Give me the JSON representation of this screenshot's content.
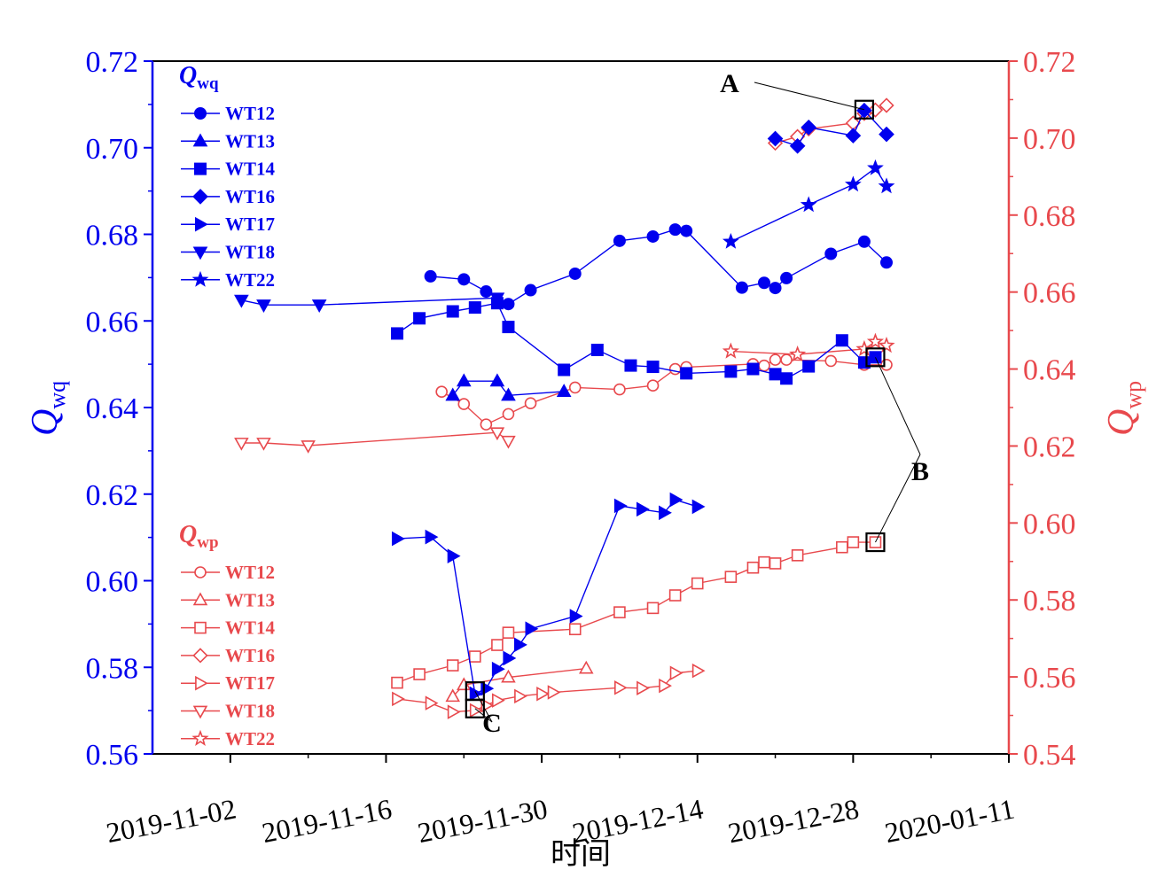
{
  "colors": {
    "left_axis": "#0000ee",
    "right_axis": "#e8494d",
    "frame": "#000000"
  },
  "chart_data": {
    "type": "line",
    "x_type": "date",
    "xlabel": "时间",
    "xlim": [
      "2019-10-26",
      "2020-01-11"
    ],
    "xticks": [
      "2019-11-02",
      "2019-11-16",
      "2019-11-30",
      "2019-12-14",
      "2019-12-28",
      "2020-01-11"
    ],
    "ylabel_left": {
      "main": "Q",
      "sub": "wq"
    },
    "ylabel_right": {
      "main": "Q",
      "sub": "wp"
    },
    "ylim_left": [
      0.56,
      0.72
    ],
    "ylim_right": [
      0.54,
      0.72
    ],
    "yticks_left": [
      "0.56",
      "0.58",
      "0.60",
      "0.62",
      "0.64",
      "0.66",
      "0.68",
      "0.70",
      "0.72"
    ],
    "yticks_right": [
      "0.54",
      "0.56",
      "0.58",
      "0.60",
      "0.62",
      "0.64",
      "0.66",
      "0.68",
      "0.70",
      "0.72"
    ],
    "legend_left": {
      "title_main": "Q",
      "title_sub": "wq",
      "placement": "top-left"
    },
    "legend_right": {
      "title_main": "Q",
      "title_sub": "wp",
      "placement": "bottom-left"
    },
    "series_wq": [
      {
        "name": "WT12",
        "marker": "circle",
        "points": [
          [
            "2019-11-20",
            0.6703
          ],
          [
            "2019-11-23",
            0.6696
          ],
          [
            "2019-11-25",
            0.6668
          ],
          [
            "2019-11-27",
            0.6639
          ],
          [
            "2019-11-29",
            0.6671
          ],
          [
            "2019-12-03",
            0.6709
          ],
          [
            "2019-12-07",
            0.6785
          ],
          [
            "2019-12-10",
            0.6795
          ],
          [
            "2019-12-12",
            0.6811
          ],
          [
            "2019-12-13",
            0.6808
          ],
          [
            "2019-12-18",
            0.6677
          ],
          [
            "2019-12-20",
            0.6688
          ],
          [
            "2019-12-21",
            0.6676
          ],
          [
            "2019-12-22",
            0.6699
          ],
          [
            "2019-12-26",
            0.6755
          ],
          [
            "2019-12-29",
            0.6783
          ],
          [
            "2019-12-31",
            0.6735
          ]
        ]
      },
      {
        "name": "WT13",
        "marker": "triangle",
        "points": [
          [
            "2019-11-22",
            0.6428
          ],
          [
            "2019-11-23",
            0.6461
          ],
          [
            "2019-11-26",
            0.6461
          ],
          [
            "2019-11-27",
            0.6428
          ],
          [
            "2019-12-02",
            0.6437
          ]
        ]
      },
      {
        "name": "WT14",
        "marker": "square",
        "points": [
          [
            "2019-11-17",
            0.6571
          ],
          [
            "2019-11-19",
            0.6606
          ],
          [
            "2019-11-22",
            0.6622
          ],
          [
            "2019-11-24",
            0.6631
          ],
          [
            "2019-11-26",
            0.6641
          ],
          [
            "2019-11-27",
            0.6586
          ],
          [
            "2019-12-02",
            0.6487
          ],
          [
            "2019-12-05",
            0.6533
          ],
          [
            "2019-12-08",
            0.6497
          ],
          [
            "2019-12-10",
            0.6494
          ],
          [
            "2019-12-13",
            0.6479
          ],
          [
            "2019-12-17",
            0.6483
          ],
          [
            "2019-12-19",
            0.6489
          ],
          [
            "2019-12-21",
            0.6477
          ],
          [
            "2019-12-22",
            0.6467
          ],
          [
            "2019-12-24",
            0.6495
          ],
          [
            "2019-12-27",
            0.6555
          ],
          [
            "2019-12-29",
            0.6504
          ],
          [
            "2019-12-30",
            0.6516
          ]
        ]
      },
      {
        "name": "WT16",
        "marker": "diamond",
        "points": [
          [
            "2019-12-21",
            0.7021
          ],
          [
            "2019-12-23",
            0.7004
          ],
          [
            "2019-12-24",
            0.7047
          ],
          [
            "2019-12-28",
            0.7028
          ],
          [
            "2019-12-29",
            0.7086
          ],
          [
            "2019-12-31",
            0.7031
          ]
        ]
      },
      {
        "name": "WT17",
        "marker": "triangle-right",
        "points": [
          [
            "2019-11-17",
            0.6097
          ],
          [
            "2019-11-20",
            0.6101
          ],
          [
            "2019-11-22",
            0.6057
          ],
          [
            "2019-11-24",
            0.5739
          ],
          [
            "2019-11-25",
            0.5751
          ],
          [
            "2019-11-26",
            0.5796
          ],
          [
            "2019-11-27",
            0.5821
          ],
          [
            "2019-11-28",
            0.5852
          ],
          [
            "2019-11-29",
            0.5889
          ],
          [
            "2019-12-03",
            0.5918
          ],
          [
            "2019-12-07",
            0.6173
          ],
          [
            "2019-12-09",
            0.6165
          ],
          [
            "2019-12-11",
            0.6157
          ],
          [
            "2019-12-12",
            0.6187
          ],
          [
            "2019-12-14",
            0.6171
          ]
        ]
      },
      {
        "name": "WT18",
        "marker": "triangle-down",
        "points": [
          [
            "2019-11-03",
            0.6648
          ],
          [
            "2019-11-05",
            0.6637
          ],
          [
            "2019-11-10",
            0.6637
          ],
          [
            "2019-11-26",
            0.6653
          ]
        ]
      },
      {
        "name": "WT22",
        "marker": "star",
        "points": [
          [
            "2019-12-17",
            0.6783
          ],
          [
            "2019-12-24",
            0.6868
          ],
          [
            "2019-12-28",
            0.6915
          ],
          [
            "2019-12-30",
            0.6953
          ],
          [
            "2019-12-31",
            0.6911
          ]
        ]
      }
    ],
    "series_wp": [
      {
        "name": "WT12",
        "marker": "circle",
        "points": [
          [
            "2019-11-21",
            0.6341
          ],
          [
            "2019-11-23",
            0.6309
          ],
          [
            "2019-11-25",
            0.6256
          ],
          [
            "2019-11-27",
            0.6283
          ],
          [
            "2019-11-29",
            0.6311
          ],
          [
            "2019-12-03",
            0.6352
          ],
          [
            "2019-12-07",
            0.6347
          ],
          [
            "2019-12-10",
            0.6357
          ],
          [
            "2019-12-12",
            0.64
          ],
          [
            "2019-12-13",
            0.6405
          ],
          [
            "2019-12-19",
            0.6413
          ],
          [
            "2019-12-20",
            0.6409
          ],
          [
            "2019-12-21",
            0.6424
          ],
          [
            "2019-12-22",
            0.6424
          ],
          [
            "2019-12-26",
            0.6421
          ],
          [
            "2019-12-29",
            0.6411
          ],
          [
            "2019-12-31",
            0.6411
          ]
        ]
      },
      {
        "name": "WT13",
        "marker": "triangle",
        "points": [
          [
            "2019-11-22",
            0.5549
          ],
          [
            "2019-11-23",
            0.5579
          ],
          [
            "2019-11-27",
            0.5599
          ],
          [
            "2019-12-04",
            0.5622
          ]
        ]
      },
      {
        "name": "WT14",
        "marker": "square",
        "points": [
          [
            "2019-11-17",
            0.5585
          ],
          [
            "2019-11-19",
            0.5607
          ],
          [
            "2019-11-22",
            0.563
          ],
          [
            "2019-11-24",
            0.5653
          ],
          [
            "2019-11-26",
            0.5683
          ],
          [
            "2019-11-27",
            0.5715
          ],
          [
            "2019-12-03",
            0.5724
          ],
          [
            "2019-12-07",
            0.5768
          ],
          [
            "2019-12-10",
            0.5779
          ],
          [
            "2019-12-12",
            0.5812
          ],
          [
            "2019-12-14",
            0.5843
          ],
          [
            "2019-12-17",
            0.586
          ],
          [
            "2019-12-19",
            0.5884
          ],
          [
            "2019-12-20",
            0.5898
          ],
          [
            "2019-12-21",
            0.5895
          ],
          [
            "2019-12-23",
            0.5916
          ],
          [
            "2019-12-27",
            0.5937
          ],
          [
            "2019-12-28",
            0.595
          ],
          [
            "2019-12-30",
            0.595
          ]
        ]
      },
      {
        "name": "WT16",
        "marker": "diamond",
        "points": [
          [
            "2019-12-21",
            0.6987
          ],
          [
            "2019-12-23",
            0.7004
          ],
          [
            "2019-12-24",
            0.7024
          ],
          [
            "2019-12-28",
            0.7039
          ],
          [
            "2019-12-29",
            0.7064
          ],
          [
            "2019-12-30",
            0.7073
          ],
          [
            "2019-12-31",
            0.7085
          ]
        ]
      },
      {
        "name": "WT17",
        "marker": "triangle-right",
        "points": [
          [
            "2019-11-17",
            0.5543
          ],
          [
            "2019-11-20",
            0.5532
          ],
          [
            "2019-11-22",
            0.5509
          ],
          [
            "2019-11-24",
            0.5513
          ],
          [
            "2019-11-25",
            0.5526
          ],
          [
            "2019-11-26",
            0.5539
          ],
          [
            "2019-11-28",
            0.555
          ],
          [
            "2019-11-30",
            0.5556
          ],
          [
            "2019-12-01",
            0.556
          ],
          [
            "2019-12-07",
            0.5572
          ],
          [
            "2019-12-09",
            0.5571
          ],
          [
            "2019-12-11",
            0.5577
          ],
          [
            "2019-12-12",
            0.561
          ],
          [
            "2019-12-14",
            0.5616
          ]
        ]
      },
      {
        "name": "WT18",
        "marker": "triangle-down",
        "points": [
          [
            "2019-11-03",
            0.6208
          ],
          [
            "2019-11-05",
            0.6208
          ],
          [
            "2019-11-09",
            0.6201
          ],
          [
            "2019-11-26",
            0.6235
          ],
          [
            "2019-11-27",
            0.6213
          ]
        ]
      },
      {
        "name": "WT22",
        "marker": "star",
        "points": [
          [
            "2019-12-17",
            0.6446
          ],
          [
            "2019-12-23",
            0.6438
          ],
          [
            "2019-12-29",
            0.6452
          ],
          [
            "2019-12-30",
            0.6471
          ],
          [
            "2019-12-31",
            0.6461
          ]
        ]
      }
    ],
    "annotations": [
      {
        "label": "A",
        "box_at": [
          "2019-12-29",
          0.7088
        ],
        "axis": "left"
      },
      {
        "label": "B",
        "box_at": [
          "2019-12-30",
          0.6516
        ],
        "axis": "left"
      },
      {
        "label": "B",
        "box_at": [
          "2019-12-30",
          0.595
        ],
        "axis": "right"
      },
      {
        "label": "C",
        "box_at": [
          "2019-11-24",
          0.5745
        ],
        "axis": "left"
      },
      {
        "label": "C",
        "box_at": [
          "2019-11-24",
          0.5518
        ],
        "axis": "right"
      }
    ]
  }
}
